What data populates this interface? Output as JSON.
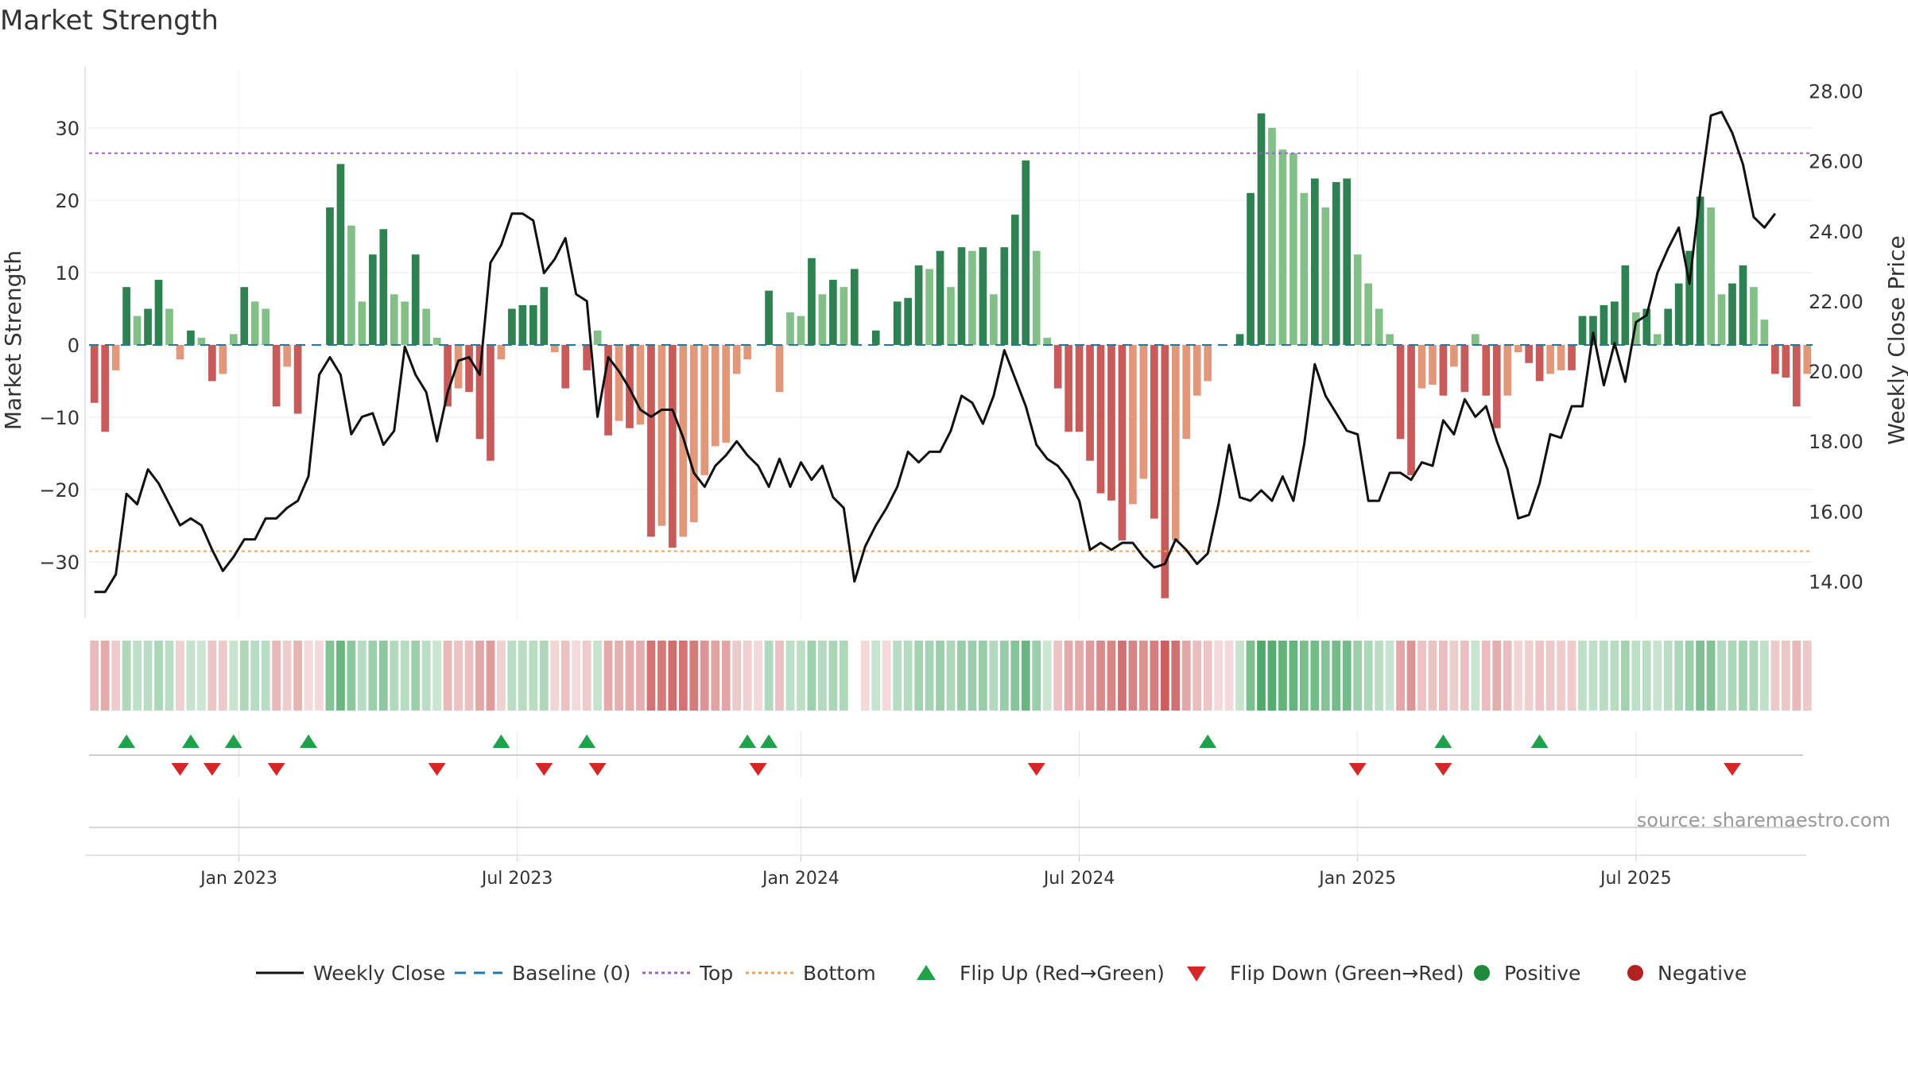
{
  "chart_data": {
    "type": "bar",
    "title": "Market Strength",
    "ylabel_left": "Market Strength",
    "ylabel_right": "Weekly Close Price",
    "ylim_left": [
      -38,
      38
    ],
    "ylim_right": [
      12.9,
      28.6
    ],
    "yticks_left": [
      30,
      20,
      10,
      0,
      -10,
      -20,
      -30
    ],
    "yticks_right": [
      "28.00",
      "26.00",
      "24.00",
      "22.00",
      "20.00",
      "18.00",
      "16.00",
      "14.00"
    ],
    "x_tick_labels": [
      "Jan 2023",
      "Jul 2023",
      "Jan 2024",
      "Jul 2024",
      "Jan 2025",
      "Jul 2025"
    ],
    "x_tick_weeks": [
      14,
      40,
      66.5,
      92.5,
      118.5,
      144.5
    ],
    "top_line": 26.5,
    "bottom_line": -28.5,
    "strength": [
      -8,
      -12,
      -3.5,
      8,
      4,
      5,
      9,
      5,
      -2,
      2,
      1,
      -5,
      -4,
      1.5,
      8,
      6,
      5,
      -8.5,
      -3,
      -9.5,
      0,
      0,
      19,
      25,
      16.5,
      6,
      12.5,
      16,
      7,
      6,
      12.5,
      5,
      1,
      -8.5,
      -6,
      -6.5,
      -13,
      -16,
      -2,
      5,
      5.5,
      5.5,
      8,
      -1,
      -6,
      0,
      -3.5,
      2,
      -12.5,
      -10.5,
      -11.5,
      -11,
      -26.5,
      -25,
      -28,
      -26.5,
      -24.5,
      -18,
      -14,
      -13.5,
      -4,
      -2,
      0,
      7.5,
      -6.5,
      4.5,
      4,
      12,
      7,
      9,
      8,
      10.5,
      0,
      2,
      0,
      6,
      6.5,
      11,
      10.5,
      13,
      8,
      13.5,
      13,
      13.5,
      7,
      13.5,
      18,
      25.5,
      13,
      1,
      -6,
      -12,
      -12,
      -16,
      -20.5,
      -21.5,
      -27,
      -22,
      -18.5,
      -24,
      -35,
      -27,
      -13,
      -7,
      -5,
      0,
      0,
      1.5,
      21,
      32,
      30,
      27,
      26.5,
      21,
      23,
      19,
      22.5,
      23,
      12.5,
      8.5,
      5,
      1.5,
      -13,
      -18,
      -6,
      -5.5,
      -7,
      -3,
      -6.5,
      1.5,
      -7,
      -11.5,
      -7,
      -1,
      -2.5,
      -5,
      -4,
      -3.5,
      -3.5,
      4,
      4,
      5.5,
      6,
      11,
      4.5,
      5,
      1.5,
      5,
      8.5,
      13,
      20.5,
      19,
      7,
      8.5,
      11,
      8,
      3.5,
      -4,
      -4.5,
      -8.5,
      -4
    ],
    "strip_missing_weeks": [
      71
    ],
    "close": [
      13.7,
      13.7,
      14.2,
      16.5,
      16.2,
      17.2,
      16.8,
      16.2,
      15.6,
      15.8,
      15.6,
      14.9,
      14.3,
      14.7,
      15.2,
      15.2,
      15.8,
      15.8,
      16.1,
      16.3,
      17.0,
      19.9,
      20.4,
      19.9,
      18.2,
      18.7,
      18.8,
      17.9,
      18.3,
      20.7,
      19.9,
      19.4,
      18.0,
      19.4,
      20.3,
      20.4,
      19.9,
      23.1,
      23.6,
      24.5,
      24.5,
      24.3,
      22.8,
      23.2,
      23.8,
      22.2,
      22.0,
      18.7,
      20.4,
      20.0,
      19.5,
      18.9,
      18.7,
      18.9,
      18.9,
      18.1,
      17.1,
      16.7,
      17.3,
      17.6,
      18.0,
      17.6,
      17.3,
      16.7,
      17.5,
      16.7,
      17.4,
      16.9,
      17.3,
      16.4,
      16.1,
      14.0,
      15.0,
      15.6,
      16.1,
      16.7,
      17.7,
      17.4,
      17.7,
      17.7,
      18.3,
      19.3,
      19.1,
      18.5,
      19.3,
      20.6,
      19.8,
      19.0,
      17.9,
      17.5,
      17.3,
      16.9,
      16.3,
      14.9,
      15.1,
      14.9,
      15.1,
      15.1,
      14.7,
      14.4,
      14.5,
      15.2,
      14.9,
      14.5,
      14.8,
      16.2,
      17.9,
      16.4,
      16.3,
      16.6,
      16.3,
      17.0,
      16.3,
      17.9,
      20.2,
      19.3,
      18.8,
      18.3,
      18.2,
      16.3,
      16.3,
      17.1,
      17.1,
      16.9,
      17.4,
      17.3,
      18.6,
      18.2,
      19.2,
      18.7,
      19.0,
      18.0,
      17.2,
      15.8,
      15.9,
      16.8,
      18.2,
      18.1,
      19.0,
      19.0,
      21.1,
      19.6,
      20.8,
      19.7,
      21.4,
      21.6,
      22.8,
      23.5,
      24.1,
      22.5,
      25.1,
      27.3,
      27.4,
      26.8,
      25.9,
      24.4,
      24.1,
      24.5
    ],
    "flip_up_weeks": [
      3,
      9,
      13,
      20,
      38,
      46,
      61,
      63,
      104,
      126,
      135
    ],
    "flip_down_weeks": [
      8,
      11,
      17,
      32,
      42,
      47,
      62,
      88,
      118,
      126,
      153
    ],
    "source": "source: sharemaestro.com",
    "legend": [
      {
        "label": "Weekly Close",
        "kind": "line-solid",
        "color": "#111111"
      },
      {
        "label": "Baseline (0)",
        "kind": "line-dashed",
        "color": "#1f77b4"
      },
      {
        "label": "Top",
        "kind": "line-dotted",
        "color": "#9467bd"
      },
      {
        "label": "Bottom",
        "kind": "line-dotted",
        "color": "#f0a060"
      },
      {
        "label": "Flip Up (Red→Green)",
        "kind": "tri-up",
        "color": "#22a04a"
      },
      {
        "label": "Flip Down (Green→Red)",
        "kind": "tri-down",
        "color": "#d62728"
      },
      {
        "label": "Positive",
        "kind": "dot",
        "color": "#1e8a3a"
      },
      {
        "label": "Negative",
        "kind": "dot",
        "color": "#b22222"
      }
    ],
    "colors": {
      "pos_strong": "#2e8150",
      "pos_weak": "#83c088",
      "neg_strong": "#c85a5a",
      "neg_weak": "#e3977a",
      "baseline": "#1f77b4",
      "top": "#9467bd",
      "bottom": "#f0a060",
      "close": "#111111"
    }
  }
}
